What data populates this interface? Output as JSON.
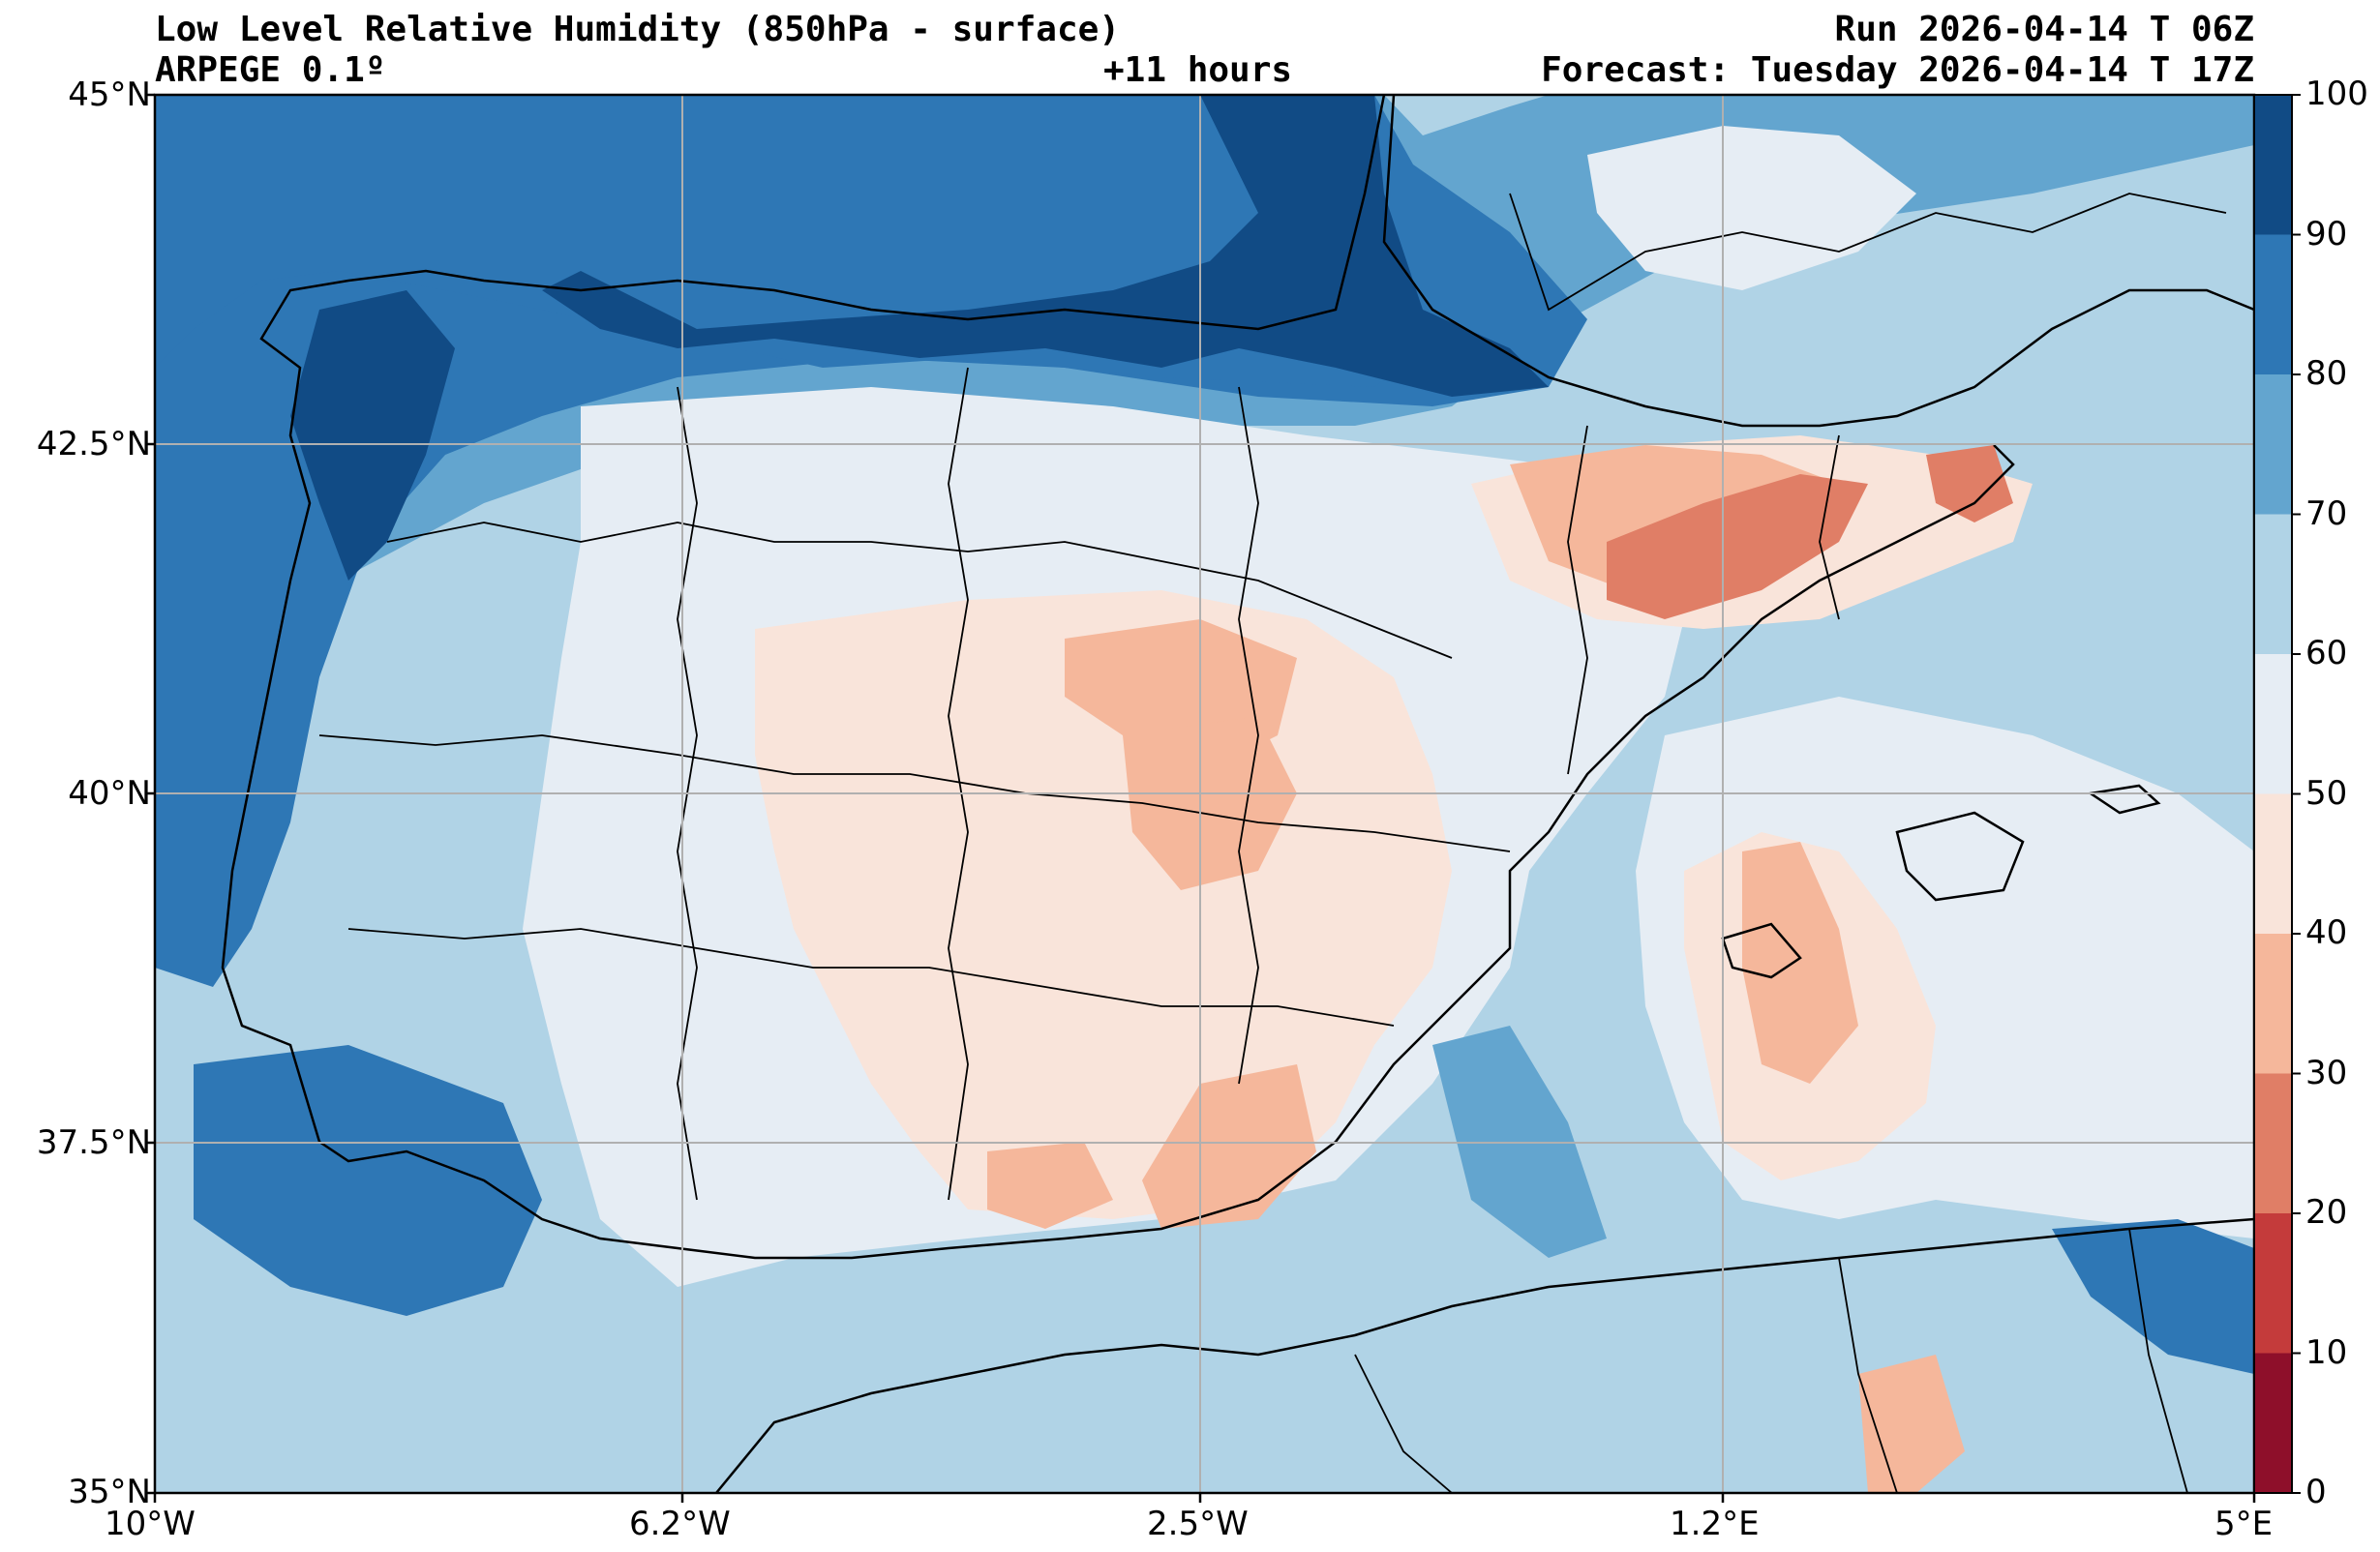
{
  "header": {
    "title": "Low Level Relative Humidity (850hPa - surface)",
    "model": "ARPEGE 0.1º",
    "lead": "+11 hours",
    "run": "Run 2026-04-14 T 06Z",
    "forecast": "Forecast: Tuesday 2026-04-14 T 17Z"
  },
  "axes": {
    "lat_ticks": [
      "45°N",
      "42.5°N",
      "40°N",
      "37.5°N",
      "35°N"
    ],
    "lon_ticks": [
      "10°W",
      "6.2°W",
      "2.5°W",
      "1.2°E",
      "5°E"
    ]
  },
  "colorbar": {
    "ticks": [
      "100",
      "90",
      "80",
      "70",
      "60",
      "50",
      "40",
      "30",
      "20",
      "10",
      "0"
    ],
    "colors": [
      "#114b85",
      "#2e77b5",
      "#63a5cf",
      "#b0d3e6",
      "#e6edf4",
      "#f9e4da",
      "#f5b79b",
      "#e07e66",
      "#c43b3b",
      "#8e0f2a"
    ]
  },
  "map": {
    "extent_lon": [
      -10,
      5
    ],
    "extent_lat": [
      35,
      45
    ],
    "background_color": "#b0d3e6"
  }
}
